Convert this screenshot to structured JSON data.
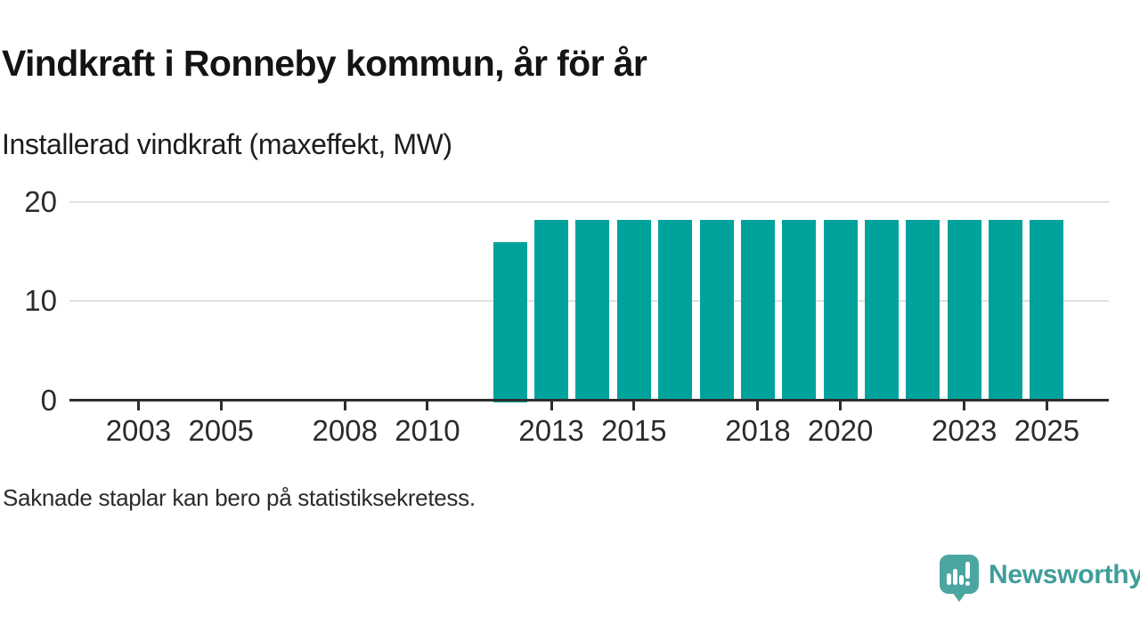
{
  "header": {
    "title": "Vindkraft i Ronneby kommun, år för år",
    "subtitle": "Installerad vindkraft (maxeffekt, MW)"
  },
  "chart_data": {
    "type": "bar",
    "title": "Vindkraft i Ronneby kommun, år för år",
    "ylabel": "Installerad vindkraft (maxeffekt, MW)",
    "xlabel": "",
    "categories": [
      2012,
      2013,
      2014,
      2015,
      2016,
      2017,
      2018,
      2019,
      2020,
      2021,
      2022,
      2023,
      2024,
      2025
    ],
    "values": [
      16,
      18.2,
      18.2,
      18.2,
      18.2,
      18.2,
      18.2,
      18.2,
      18.2,
      18.2,
      18.2,
      18.2,
      18.2,
      18.2
    ],
    "x_tick_labels": [
      2003,
      2005,
      2008,
      2010,
      2013,
      2015,
      2018,
      2020,
      2023,
      2025
    ],
    "y_tick_labels": [
      0,
      10,
      20
    ],
    "xlim": [
      2001.33,
      2026.5
    ],
    "ylim": [
      0,
      20
    ],
    "grid": "horizontal-only",
    "legend": "none",
    "bar_color": "#00a39b",
    "missing_years_note": "2001-2011 have no bars"
  },
  "footer": {
    "note": "Saknade staplar kan bero på statistiksekretess."
  },
  "branding": {
    "logo_text": "Newsworthy",
    "logo_icon": "speech-bubble-bar-chart-icon"
  },
  "colors": {
    "bar": "#00a39b",
    "axis": "#2e2e2e",
    "axis_label": "#2b2b2b",
    "grid": "#e1e1e1",
    "title": "#141414",
    "subtitle": "#1d1d1d",
    "note": "#2b2b2b",
    "logo_icon": "#4ba6a2",
    "logo_text": "#3f9e99",
    "background": "#ffffff"
  }
}
